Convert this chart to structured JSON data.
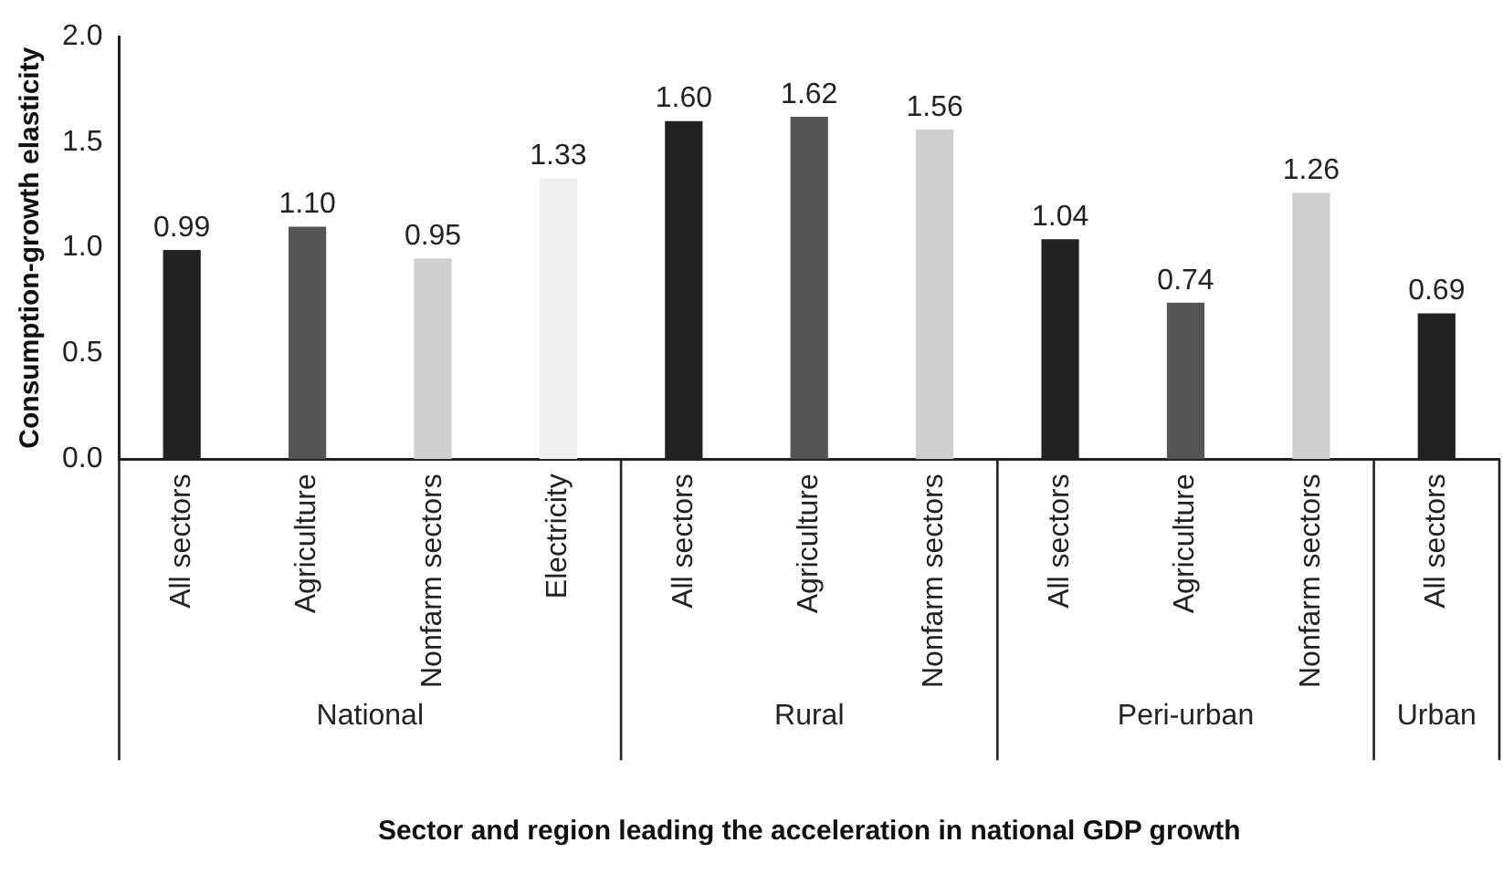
{
  "chart_data": {
    "type": "bar",
    "xlabel": "Sector and region leading the acceleration in national GDP growth",
    "ylabel": "Consumption-growth elasticity",
    "categories": [
      "All sectors",
      "Agriculture",
      "Nonfarm sectors",
      "Electricity",
      "All sectors",
      "Agriculture",
      "Nonfarm sectors",
      "All sectors",
      "Agriculture",
      "Nonfarm sectors",
      "All sectors"
    ],
    "values": [
      0.99,
      1.1,
      0.95,
      1.33,
      1.6,
      1.62,
      1.56,
      1.04,
      0.74,
      1.26,
      0.69
    ],
    "colors": [
      "#222222",
      "#555555",
      "#cfcfcf",
      "#f0f0f0",
      "#222222",
      "#555555",
      "#cfcfcf",
      "#222222",
      "#555555",
      "#cfcfcf",
      "#222222"
    ],
    "annotations": [
      "National",
      "Rural",
      "Peri-urban",
      "Urban"
    ],
    "ylim": [
      0,
      2
    ],
    "yticks": [
      {
        "value": 0,
        "label": "0.0"
      },
      {
        "value": 0.5,
        "label": "0.5"
      },
      {
        "value": 1,
        "label": "1.0"
      },
      {
        "value": 1.5,
        "label": "1.5"
      },
      {
        "value": 2,
        "label": "2.0"
      }
    ],
    "value_labels": [
      "0.99",
      "1.10",
      "0.95",
      "1.33",
      "1.60",
      "1.62",
      "1.56",
      "1.04",
      "0.74",
      "1.26",
      "0.69"
    ],
    "grid": false,
    "legend": false
  }
}
